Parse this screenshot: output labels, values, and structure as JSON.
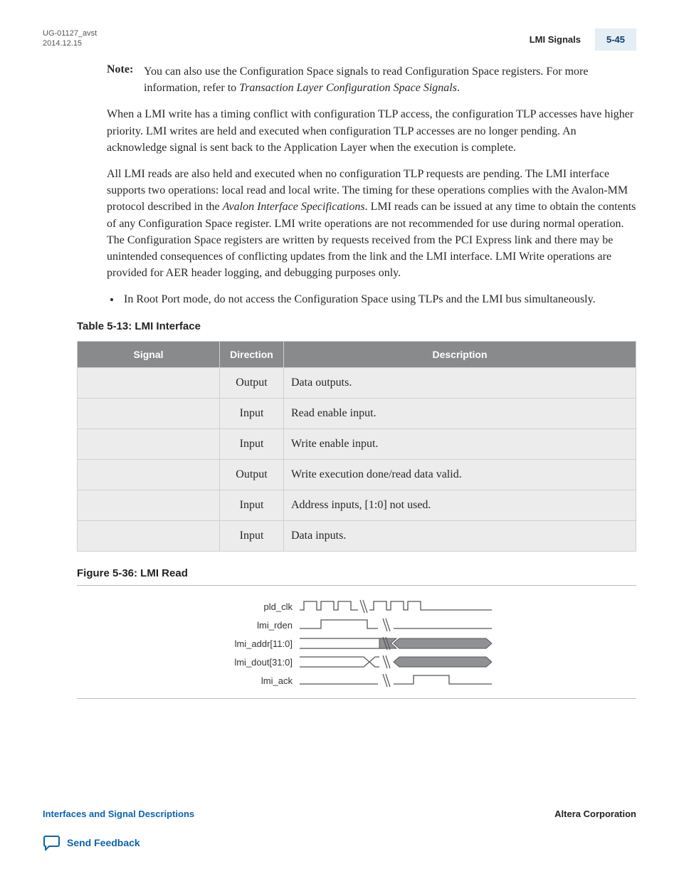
{
  "header": {
    "doc_id_line1": "UG-01127_avst",
    "doc_id_line2": "2014.12.15",
    "section_title": "LMI Signals",
    "page_number": "5-45"
  },
  "note": {
    "label": "Note:",
    "text_before_ital": "You can also use the Configuration Space signals to read Configuration Space registers. For more information, refer to ",
    "ital": "Transaction Layer Configuration Space Signals",
    "text_after_ital": "."
  },
  "para1": "When a LMI write has a timing conflict with configuration TLP access, the configuration TLP accesses have higher priority. LMI writes are held and executed when configuration TLP accesses are no longer pending. An acknowledge signal is sent back to the Application Layer when the execution is complete.",
  "para2_before": "All LMI reads are also held and executed when no configuration TLP requests are pending. The LMI interface supports two operations: local read and local write. The timing for these operations complies with the Avalon-MM protocol described in the ",
  "para2_ital": "Avalon Interface Specifications",
  "para2_after": ". LMI reads can be issued at any time to obtain the contents of any Configuration Space register. LMI write operations are not recommended for use during normal operation. The Configuration Space registers are written by requests received from the PCI Express link and there may be unintended consequences of conflicting updates from the link and the LMI interface. LMI Write operations are provided for AER header logging, and debugging purposes only.",
  "bullet1": "In Root Port mode, do not access the Configuration Space using TLPs and the LMI bus simultane­ously.",
  "table": {
    "caption": "Table 5-13: LMI Interface",
    "columns": [
      "Signal",
      "Direction",
      "Description"
    ],
    "rows": [
      {
        "signal": "",
        "direction": "Output",
        "description": "Data outputs."
      },
      {
        "signal": "",
        "direction": "Input",
        "description": "Read enable input."
      },
      {
        "signal": "",
        "direction": "Input",
        "description": "Write enable input."
      },
      {
        "signal": "",
        "direction": "Output",
        "description": "Write execution done/read data valid."
      },
      {
        "signal": "",
        "direction": "Input",
        "description": "Address inputs, [1:0] not used."
      },
      {
        "signal": "",
        "direction": "Input",
        "description": "Data inputs."
      }
    ]
  },
  "figure": {
    "caption": "Figure 5-36: LMI Read",
    "signals": [
      "pld_clk",
      "lmi_rden",
      "lmi_addr[11:0]",
      "lmi_dout[31:0]",
      "lmi_ack"
    ],
    "colors": {
      "stroke": "#555",
      "bus_fill": "#8f9194",
      "bg": "#fff"
    }
  },
  "footer": {
    "left_link": "Interfaces and Signal Descriptions",
    "right_text": "Altera Corporation",
    "feedback_label": "Send Feedback"
  }
}
